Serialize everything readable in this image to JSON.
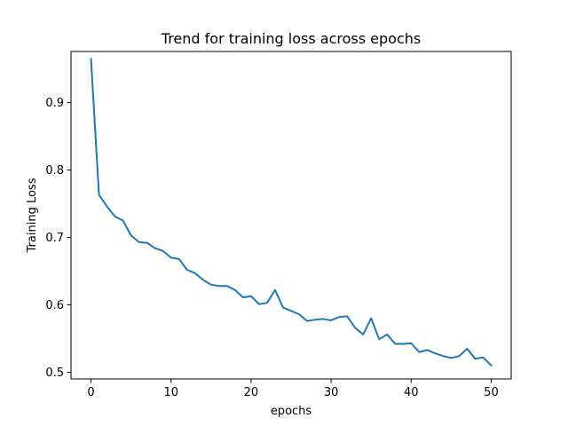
{
  "chart_data": {
    "type": "line",
    "title": "Trend for training loss across epochs",
    "xlabel": "epochs",
    "ylabel": "Training Loss",
    "xlim": [
      -2.5,
      52.5
    ],
    "ylim": [
      0.49,
      0.976
    ],
    "xticks": [
      0,
      10,
      20,
      30,
      40,
      50
    ],
    "yticks": [
      0.5,
      0.6,
      0.7,
      0.8,
      0.9
    ],
    "grid": false,
    "series": [
      {
        "color": "#1f77b4",
        "x": [
          0,
          1,
          2,
          3,
          4,
          5,
          6,
          7,
          8,
          9,
          10,
          11,
          12,
          13,
          14,
          15,
          16,
          17,
          18,
          19,
          20,
          21,
          22,
          23,
          24,
          25,
          26,
          27,
          28,
          29,
          30,
          31,
          32,
          33,
          34,
          35,
          36,
          37,
          38,
          39,
          40,
          41,
          42,
          43,
          44,
          45,
          46,
          47,
          48,
          49,
          50
        ],
        "y": [
          0.965,
          0.763,
          0.746,
          0.731,
          0.725,
          0.703,
          0.693,
          0.692,
          0.684,
          0.68,
          0.67,
          0.668,
          0.652,
          0.647,
          0.637,
          0.63,
          0.628,
          0.628,
          0.622,
          0.611,
          0.613,
          0.601,
          0.603,
          0.622,
          0.596,
          0.591,
          0.586,
          0.576,
          0.578,
          0.579,
          0.577,
          0.582,
          0.583,
          0.566,
          0.556,
          0.58,
          0.549,
          0.556,
          0.542,
          0.542,
          0.543,
          0.53,
          0.533,
          0.528,
          0.524,
          0.521,
          0.524,
          0.535,
          0.52,
          0.522,
          0.51
        ]
      }
    ]
  }
}
